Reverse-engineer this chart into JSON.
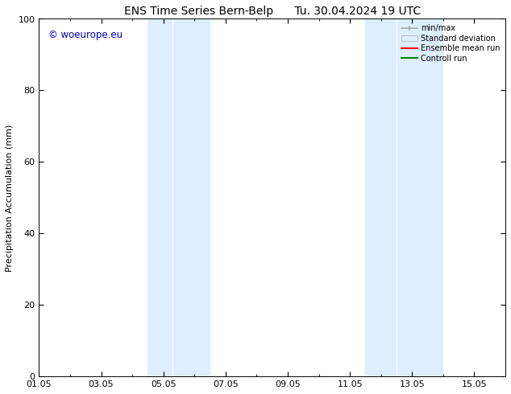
{
  "title_left": "ENS Time Series Bern-Belp",
  "title_right": "Tu. 30.04.2024 19 UTC",
  "ylabel": "Precipitation Accumulation (mm)",
  "ylim": [
    0,
    100
  ],
  "yticks": [
    0,
    20,
    40,
    60,
    80,
    100
  ],
  "xlim": [
    0,
    15
  ],
  "xtick_labels": [
    "01.05",
    "03.05",
    "05.05",
    "07.05",
    "09.05",
    "11.05",
    "13.05",
    "15.05"
  ],
  "xtick_positions_days": [
    0,
    2,
    4,
    6,
    8,
    10,
    12,
    14
  ],
  "shaded_bands": [
    {
      "xstart": 3.5,
      "xend": 4.25,
      "color": "#dce9f5"
    },
    {
      "xstart": 4.25,
      "xend": 5.0,
      "color": "#dce9f5"
    },
    {
      "xstart": 10.5,
      "xend": 11.25,
      "color": "#dce9f5"
    },
    {
      "xstart": 11.25,
      "xend": 12.0,
      "color": "#dce9f5"
    }
  ],
  "shade_light": "#ddeeff",
  "shade_mid": "#c8dcf0",
  "background_color": "#ffffff",
  "watermark_text": "© woeurope.eu",
  "watermark_color": "#0000cc",
  "legend_labels": [
    "min/max",
    "Standard deviation",
    "Ensemble mean run",
    "Controll run"
  ],
  "legend_line_colors": [
    "#aaaaaa",
    "#cccccc",
    "#ff0000",
    "#008800"
  ],
  "title_fontsize": 10,
  "axis_fontsize": 8,
  "tick_fontsize": 8,
  "legend_fontsize": 7
}
